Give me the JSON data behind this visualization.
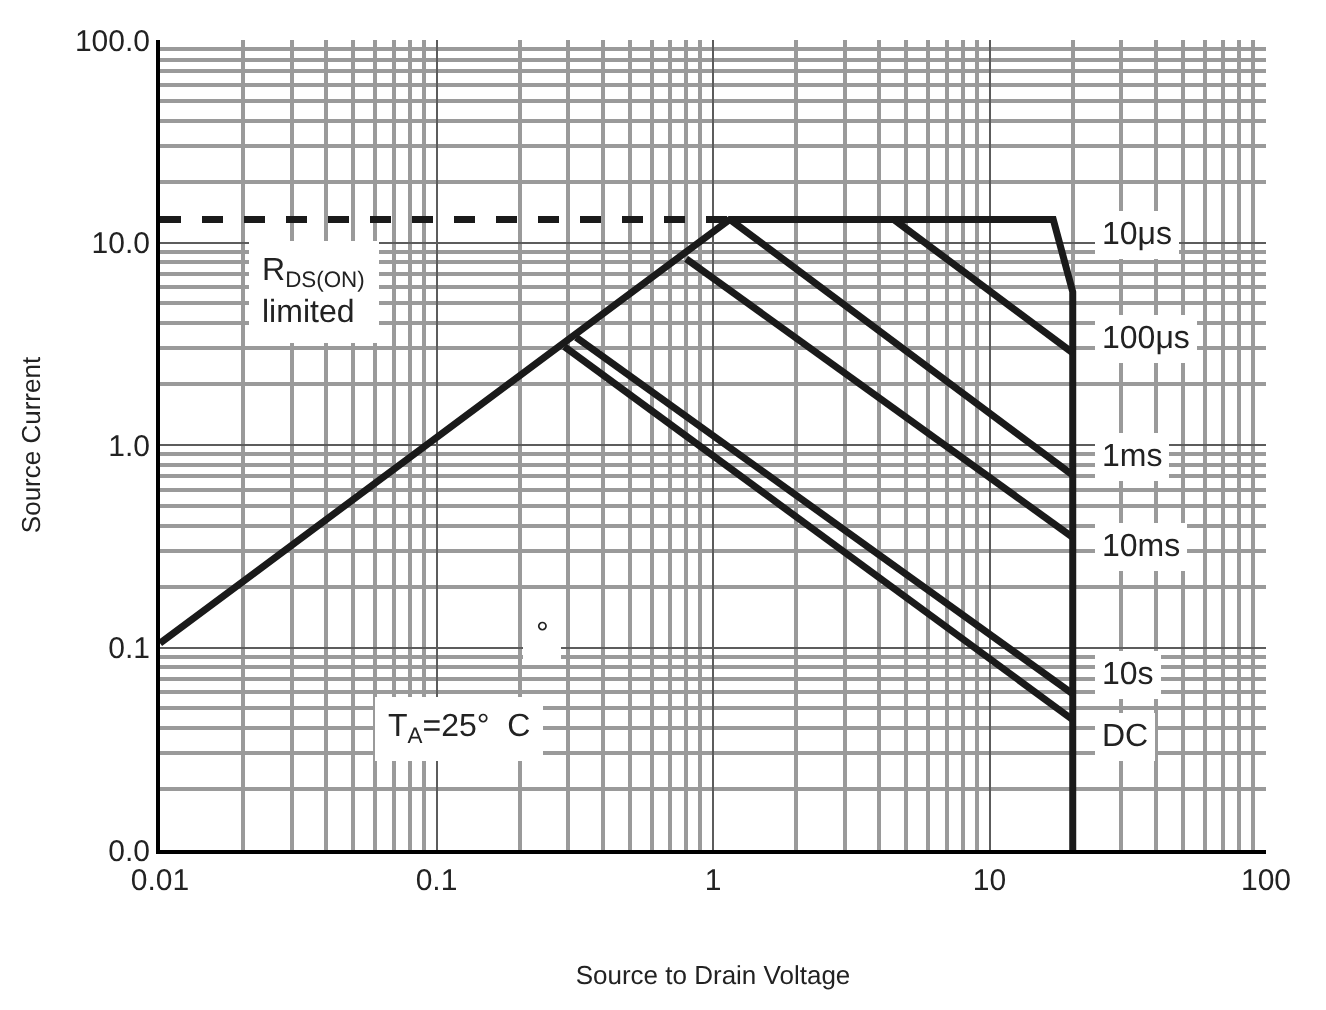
{
  "chart_data": {
    "type": "line",
    "xlabel": "Source to Drain Voltage",
    "ylabel": "Source Current",
    "log": "xy",
    "grid": true,
    "legend": false,
    "marker": "none",
    "xlim": [
      0.01,
      100
    ],
    "xticks": [
      0.01,
      0.1,
      1,
      10,
      100
    ],
    "ylim": [
      0.01,
      100
    ],
    "yticks": [
      {
        "value": 0.01,
        "label": "0.0"
      },
      0.1,
      {
        "value": 1,
        "label": "1.0"
      },
      {
        "value": 10,
        "label": "10.0"
      },
      {
        "value": 100,
        "label": "100.0"
      }
    ],
    "series": [
      {
        "color": "#1a1a1a",
        "line_style": "solid",
        "x": [
          0.01,
          1.15,
          17,
          20,
          20
        ],
        "values": [
          0.105,
          13,
          13,
          5.7,
          0.01
        ]
      },
      {
        "color": "#1a1a1a",
        "line_style": "dashed",
        "x": [
          0.01,
          1.15
        ],
        "values": [
          13,
          13
        ]
      },
      {
        "color": "#1a1a1a",
        "line_style": "solid",
        "x": [
          4.5,
          20
        ],
        "values": [
          13,
          2.85
        ]
      },
      {
        "color": "#1a1a1a",
        "line_style": "solid",
        "x": [
          1.15,
          20
        ],
        "values": [
          13,
          0.71
        ]
      },
      {
        "color": "#1a1a1a",
        "line_style": "solid",
        "x": [
          0.8,
          20
        ],
        "values": [
          8.3,
          0.35
        ]
      },
      {
        "color": "#1a1a1a",
        "line_style": "solid",
        "x": [
          0.32,
          20
        ],
        "values": [
          3.4,
          0.059
        ]
      },
      {
        "color": "#1a1a1a",
        "line_style": "solid",
        "x": [
          0.29,
          20
        ],
        "values": [
          3.06,
          0.044
        ]
      }
    ],
    "annotations": [
      "10μs",
      "100μs",
      "1ms",
      "10ms",
      "10s",
      "DC",
      "R$_{DS(ON)}$\nlimited",
      "T$_{A}$=25°  C",
      "°"
    ]
  }
}
